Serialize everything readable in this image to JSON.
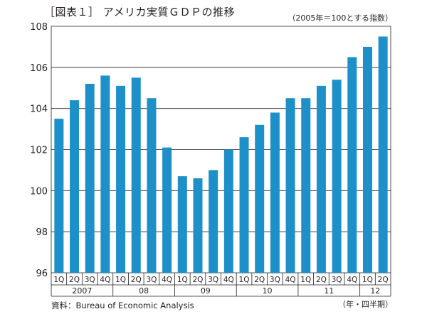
{
  "title": "［図表１］ アメリカ実質ＧＤＰの推移",
  "unit_note": "（2005年＝100とする指数）",
  "source": "資料：Bureau of Economic Analysis",
  "period_note": "（年・四半期）",
  "colors": {
    "bar": "#1e90c9",
    "grid": "#231f20"
  },
  "chart_data": {
    "type": "bar",
    "title": "アメリカ実質ＧＤＰの推移",
    "ylim": [
      96,
      108
    ],
    "yticks": [
      96,
      98,
      100,
      102,
      104,
      106,
      108
    ],
    "grid": true,
    "categories": [
      "1Q",
      "2Q",
      "3Q",
      "4Q",
      "1Q",
      "2Q",
      "3Q",
      "4Q",
      "1Q",
      "2Q",
      "3Q",
      "4Q",
      "1Q",
      "2Q",
      "3Q",
      "4Q",
      "1Q",
      "2Q",
      "3Q",
      "4Q",
      "1Q",
      "2Q"
    ],
    "years": [
      {
        "label": "2007",
        "count": 4
      },
      {
        "label": "08",
        "count": 4
      },
      {
        "label": "09",
        "count": 4
      },
      {
        "label": "10",
        "count": 4
      },
      {
        "label": "11",
        "count": 4
      },
      {
        "label": "12",
        "count": 2
      }
    ],
    "values": [
      103.5,
      104.4,
      105.2,
      105.6,
      105.1,
      105.5,
      104.5,
      102.1,
      100.7,
      100.6,
      101.0,
      102.0,
      102.6,
      103.2,
      103.8,
      104.5,
      104.5,
      105.1,
      105.4,
      106.5,
      107.0,
      107.5
    ]
  }
}
